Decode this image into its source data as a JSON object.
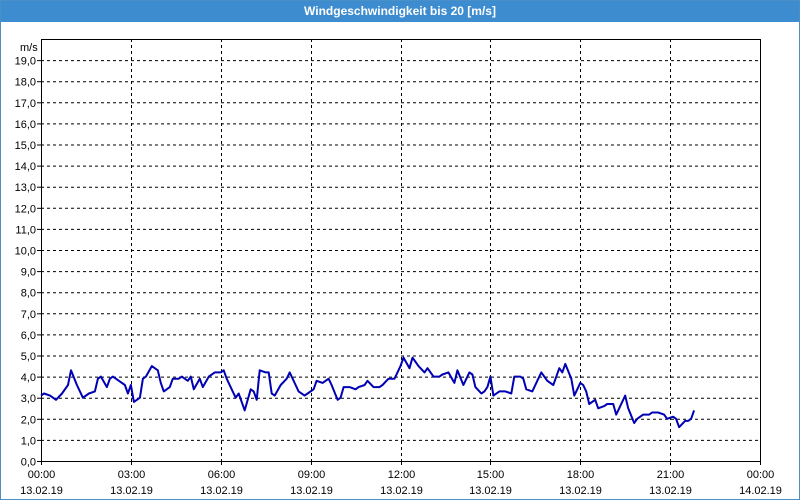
{
  "window": {
    "title": "Windgeschwindigkeit bis 20 [m/s]"
  },
  "colors": {
    "titlebar": "#3d8ccf",
    "series": "#0000b4",
    "grid": "#000000"
  },
  "chart_data": {
    "type": "line",
    "ylabel": "m/s",
    "ylim": [
      0,
      20
    ],
    "y_ticks": [
      "0,0",
      "1,0",
      "2,0",
      "3,0",
      "4,0",
      "5,0",
      "6,0",
      "7,0",
      "8,0",
      "9,0",
      "10,0",
      "11,0",
      "12,0",
      "13,0",
      "14,0",
      "15,0",
      "16,0",
      "17,0",
      "18,0",
      "19,0"
    ],
    "x_range_hours": [
      0,
      24
    ],
    "x_ticks": [
      {
        "time": "00:00",
        "date": "13.02.19"
      },
      {
        "time": "03:00",
        "date": "13.02.19"
      },
      {
        "time": "06:00",
        "date": "13.02.19"
      },
      {
        "time": "09:00",
        "date": "13.02.19"
      },
      {
        "time": "12:00",
        "date": "13.02.19"
      },
      {
        "time": "15:00",
        "date": "13.02.19"
      },
      {
        "time": "18:00",
        "date": "13.02.19"
      },
      {
        "time": "21:00",
        "date": "13.02.19"
      },
      {
        "time": "00:00",
        "date": "14.02.19"
      }
    ],
    "grid": true,
    "series": [
      {
        "points": [
          [
            0.0,
            3.1
          ],
          [
            0.1,
            3.2
          ],
          [
            0.3,
            3.1
          ],
          [
            0.5,
            2.9
          ],
          [
            0.7,
            3.2
          ],
          [
            0.9,
            3.6
          ],
          [
            1.0,
            4.3
          ],
          [
            1.2,
            3.6
          ],
          [
            1.4,
            3.0
          ],
          [
            1.6,
            3.2
          ],
          [
            1.8,
            3.3
          ],
          [
            1.9,
            3.9
          ],
          [
            2.0,
            4.0
          ],
          [
            2.2,
            3.5
          ],
          [
            2.3,
            3.9
          ],
          [
            2.4,
            4.0
          ],
          [
            2.6,
            3.8
          ],
          [
            2.8,
            3.6
          ],
          [
            2.9,
            3.2
          ],
          [
            3.0,
            3.6
          ],
          [
            3.1,
            2.8
          ],
          [
            3.3,
            3.0
          ],
          [
            3.4,
            3.9
          ],
          [
            3.5,
            4.0
          ],
          [
            3.7,
            4.5
          ],
          [
            3.9,
            4.3
          ],
          [
            4.0,
            3.7
          ],
          [
            4.1,
            3.3
          ],
          [
            4.3,
            3.5
          ],
          [
            4.4,
            3.9
          ],
          [
            4.6,
            3.9
          ],
          [
            4.7,
            4.0
          ],
          [
            4.9,
            3.8
          ],
          [
            5.0,
            4.0
          ],
          [
            5.1,
            3.4
          ],
          [
            5.3,
            3.9
          ],
          [
            5.4,
            3.5
          ],
          [
            5.6,
            4.0
          ],
          [
            5.8,
            4.2
          ],
          [
            6.0,
            4.2
          ],
          [
            6.1,
            4.3
          ],
          [
            6.2,
            3.9
          ],
          [
            6.4,
            3.3
          ],
          [
            6.5,
            3.0
          ],
          [
            6.6,
            3.2
          ],
          [
            6.8,
            2.4
          ],
          [
            7.0,
            3.4
          ],
          [
            7.1,
            3.3
          ],
          [
            7.2,
            2.9
          ],
          [
            7.3,
            4.3
          ],
          [
            7.5,
            4.2
          ],
          [
            7.6,
            4.2
          ],
          [
            7.7,
            3.2
          ],
          [
            7.8,
            3.1
          ],
          [
            8.0,
            3.6
          ],
          [
            8.2,
            3.9
          ],
          [
            8.3,
            4.2
          ],
          [
            8.5,
            3.6
          ],
          [
            8.6,
            3.3
          ],
          [
            8.8,
            3.1
          ],
          [
            8.9,
            3.2
          ],
          [
            9.1,
            3.4
          ],
          [
            9.2,
            3.8
          ],
          [
            9.4,
            3.7
          ],
          [
            9.6,
            3.9
          ],
          [
            9.7,
            3.6
          ],
          [
            9.9,
            2.9
          ],
          [
            10.0,
            3.0
          ],
          [
            10.1,
            3.5
          ],
          [
            10.3,
            3.5
          ],
          [
            10.5,
            3.4
          ],
          [
            10.6,
            3.5
          ],
          [
            10.8,
            3.6
          ],
          [
            10.9,
            3.8
          ],
          [
            11.1,
            3.5
          ],
          [
            11.3,
            3.5
          ],
          [
            11.4,
            3.6
          ],
          [
            11.6,
            3.9
          ],
          [
            11.8,
            3.9
          ],
          [
            12.0,
            4.5
          ],
          [
            12.1,
            4.9
          ],
          [
            12.3,
            4.4
          ],
          [
            12.4,
            4.9
          ],
          [
            12.6,
            4.5
          ],
          [
            12.8,
            4.2
          ],
          [
            12.9,
            4.4
          ],
          [
            13.1,
            4.0
          ],
          [
            13.3,
            4.0
          ],
          [
            13.4,
            4.1
          ],
          [
            13.6,
            4.2
          ],
          [
            13.8,
            3.7
          ],
          [
            13.9,
            4.3
          ],
          [
            14.1,
            3.6
          ],
          [
            14.3,
            4.2
          ],
          [
            14.4,
            4.1
          ],
          [
            14.5,
            3.5
          ],
          [
            14.7,
            3.2
          ],
          [
            14.8,
            3.3
          ],
          [
            14.9,
            3.5
          ],
          [
            15.0,
            4.0
          ],
          [
            15.1,
            3.1
          ],
          [
            15.3,
            3.3
          ],
          [
            15.5,
            3.3
          ],
          [
            15.7,
            3.2
          ],
          [
            15.8,
            4.0
          ],
          [
            16.0,
            4.0
          ],
          [
            16.1,
            3.9
          ],
          [
            16.2,
            3.4
          ],
          [
            16.4,
            3.3
          ],
          [
            16.6,
            3.9
          ],
          [
            16.7,
            4.2
          ],
          [
            16.9,
            3.8
          ],
          [
            17.1,
            3.6
          ],
          [
            17.3,
            4.4
          ],
          [
            17.4,
            4.2
          ],
          [
            17.5,
            4.6
          ],
          [
            17.7,
            3.9
          ],
          [
            17.8,
            3.1
          ],
          [
            18.0,
            3.7
          ],
          [
            18.1,
            3.6
          ],
          [
            18.2,
            3.3
          ],
          [
            18.3,
            2.7
          ],
          [
            18.5,
            2.9
          ],
          [
            18.6,
            2.5
          ],
          [
            18.8,
            2.6
          ],
          [
            18.9,
            2.7
          ],
          [
            19.1,
            2.7
          ],
          [
            19.2,
            2.2
          ],
          [
            19.3,
            2.5
          ],
          [
            19.5,
            3.1
          ],
          [
            19.6,
            2.5
          ],
          [
            19.8,
            1.8
          ],
          [
            19.9,
            2.0
          ],
          [
            20.1,
            2.2
          ],
          [
            20.3,
            2.2
          ],
          [
            20.4,
            2.3
          ],
          [
            20.6,
            2.3
          ],
          [
            20.8,
            2.2
          ],
          [
            20.9,
            2.0
          ],
          [
            21.1,
            2.1
          ],
          [
            21.2,
            2.0
          ],
          [
            21.3,
            1.6
          ],
          [
            21.5,
            1.9
          ],
          [
            21.6,
            1.9
          ],
          [
            21.7,
            2.0
          ],
          [
            21.8,
            2.4
          ]
        ]
      }
    ]
  }
}
